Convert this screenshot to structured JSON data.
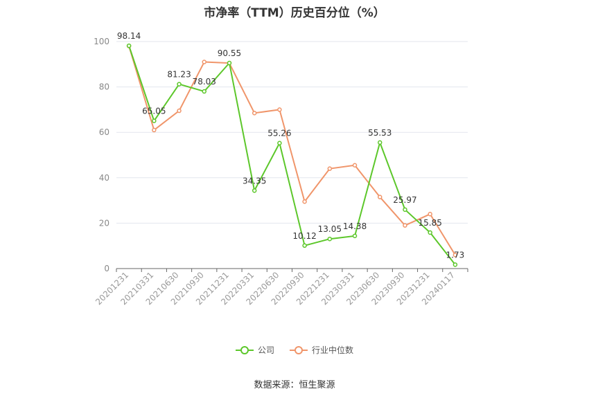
{
  "title": "市净率（TTM）历史百分位（%）",
  "source_label": "数据来源：恒生聚源",
  "chart_data": {
    "type": "line",
    "title": "市净率（TTM）历史百分位（%）",
    "categories": [
      "20201231",
      "20210331",
      "20210630",
      "20210930",
      "20211231",
      "20220331",
      "20220630",
      "20220930",
      "20221231",
      "20230331",
      "20230630",
      "20230930",
      "20231231",
      "20240117"
    ],
    "series": [
      {
        "name": "公司",
        "color": "#5cc72a",
        "values": [
          98.14,
          65.05,
          81.23,
          78.03,
          90.55,
          34.35,
          55.26,
          10.12,
          13.05,
          14.38,
          55.53,
          25.97,
          15.85,
          1.73
        ],
        "labels": [
          "98.14",
          "65.05",
          "81.23",
          "78.03",
          "90.55",
          "34.35",
          "55.26",
          "10.12",
          "13.05",
          "14.38",
          "55.53",
          "25.97",
          "15.85",
          "1.73"
        ]
      },
      {
        "name": "行业中位数",
        "color": "#f0956a",
        "values": [
          98.0,
          61.0,
          69.5,
          91.0,
          90.5,
          68.5,
          70.0,
          29.5,
          44.0,
          45.5,
          31.5,
          19.0,
          24.0,
          6.0
        ]
      }
    ],
    "yticks": [
      "0",
      "20",
      "40",
      "60",
      "80",
      "100"
    ],
    "ylim": [
      0,
      100
    ],
    "grid": true,
    "legend_position": "bottom"
  }
}
